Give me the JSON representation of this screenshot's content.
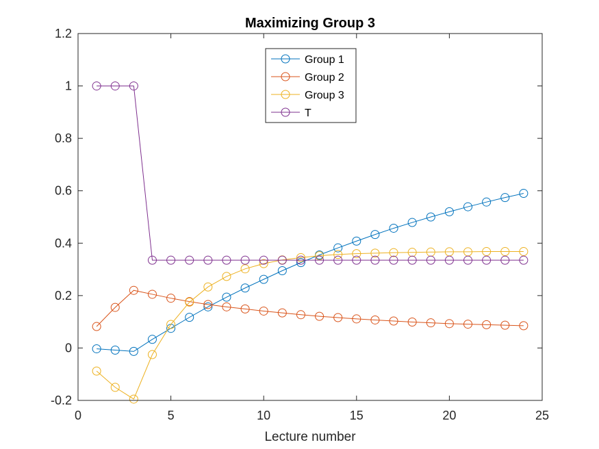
{
  "chart_data": {
    "type": "line",
    "title": "Maximizing Group 3",
    "xlabel": "Lecture number",
    "ylabel": "",
    "xlim": [
      0,
      25
    ],
    "ylim": [
      -0.2,
      1.2
    ],
    "xticks": [
      0,
      5,
      10,
      15,
      20,
      25
    ],
    "xtick_labels": [
      "0",
      "5",
      "10",
      "15",
      "20",
      "25"
    ],
    "yticks": [
      -0.2,
      0,
      0.2,
      0.4,
      0.6,
      0.8,
      1,
      1.2
    ],
    "ytick_labels": [
      "-0.2",
      "0",
      "0.2",
      "0.4",
      "0.6",
      "0.8",
      "1",
      "1.2"
    ],
    "grid": false,
    "legend_position": "top-center",
    "marker": "circle-open",
    "x": [
      1,
      2,
      3,
      4,
      5,
      6,
      7,
      8,
      9,
      10,
      11,
      12,
      13,
      14,
      15,
      16,
      17,
      18,
      19,
      20,
      21,
      22,
      23,
      24
    ],
    "series": [
      {
        "name": "Group 1",
        "color": "#0072BD",
        "values": [
          -0.003,
          -0.008,
          -0.013,
          0.033,
          0.075,
          0.117,
          0.157,
          0.194,
          0.229,
          0.262,
          0.295,
          0.326,
          0.355,
          0.382,
          0.408,
          0.433,
          0.457,
          0.479,
          0.5,
          0.52,
          0.539,
          0.557,
          0.574,
          0.59
        ]
      },
      {
        "name": "Group 2",
        "color": "#D95319",
        "values": [
          0.082,
          0.155,
          0.22,
          0.205,
          0.19,
          0.177,
          0.166,
          0.157,
          0.149,
          0.141,
          0.134,
          0.127,
          0.121,
          0.116,
          0.111,
          0.107,
          0.103,
          0.099,
          0.096,
          0.093,
          0.091,
          0.089,
          0.087,
          0.085
        ]
      },
      {
        "name": "Group 3",
        "color": "#EDB120",
        "values": [
          -0.088,
          -0.15,
          -0.195,
          -0.025,
          0.09,
          0.175,
          0.233,
          0.273,
          0.302,
          0.322,
          0.336,
          0.345,
          0.352,
          0.357,
          0.36,
          0.362,
          0.364,
          0.365,
          0.366,
          0.367,
          0.367,
          0.368,
          0.368,
          0.368
        ]
      },
      {
        "name": "T",
        "color": "#7E2F8E",
        "values": [
          1,
          1,
          1,
          0.335,
          0.335,
          0.335,
          0.335,
          0.335,
          0.335,
          0.335,
          0.335,
          0.335,
          0.335,
          0.335,
          0.335,
          0.335,
          0.335,
          0.335,
          0.335,
          0.335,
          0.335,
          0.335,
          0.335,
          0.335
        ]
      }
    ]
  }
}
